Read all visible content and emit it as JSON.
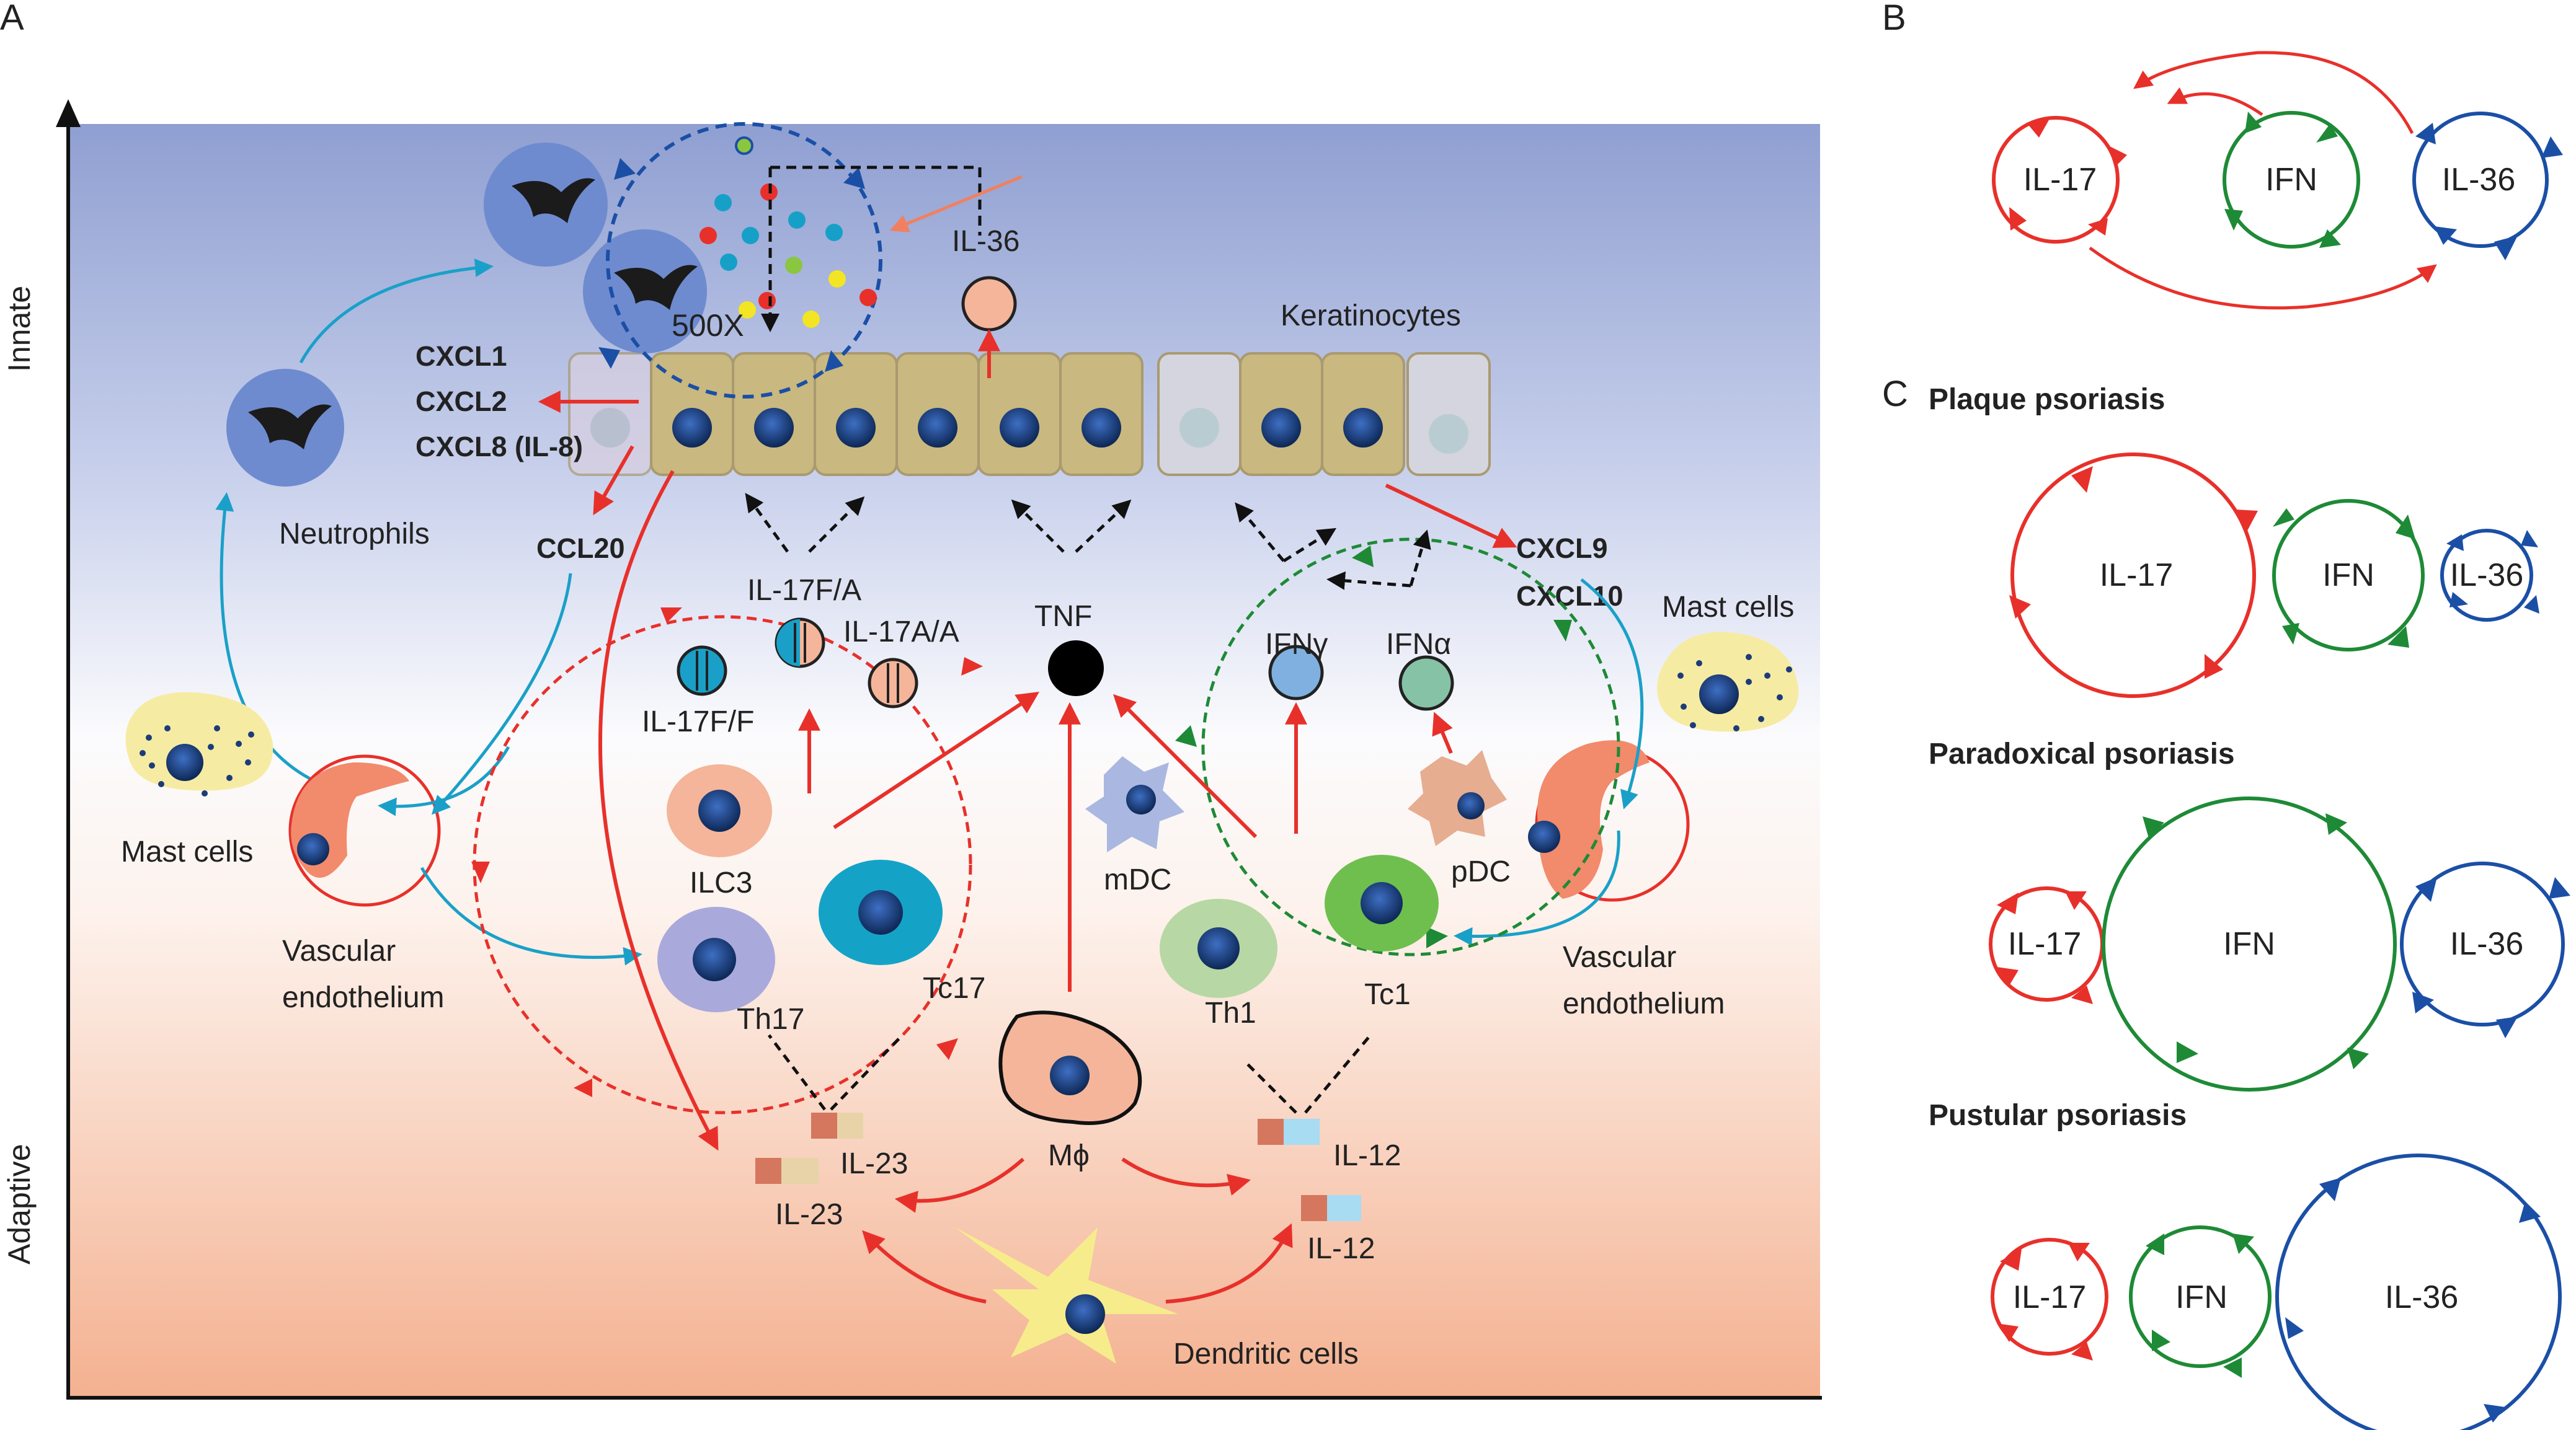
{
  "panels": {
    "a": "A",
    "b": "B",
    "c": "C"
  },
  "axis": {
    "innate": "Innate",
    "adaptive": "Adaptive"
  },
  "panel_a": {
    "keratinocytes": "Keratinocytes",
    "magnification": "500X",
    "il36": "IL-36",
    "cxcl1": "CXCL1",
    "cxcl2": "CXCL2",
    "cxcl8": "CXCL8 (IL-8)",
    "ccl20": "CCL20",
    "cxcl9": "CXCL9",
    "cxcl10": "CXCL10",
    "neutrophils": "Neutrophils",
    "mast_cells_left": "Mast cells",
    "mast_cells_right": "Mast cells",
    "vasc_left_1": "Vascular",
    "vasc_left_2": "endothelium",
    "vasc_right_1": "Vascular",
    "vasc_right_2": "endothelium",
    "il17fa": "IL-17F/A",
    "il17aa": "IL-17A/A",
    "il17ff": "IL-17F/F",
    "tnf": "TNF",
    "ifng": "IFNγ",
    "ifna": "IFNα",
    "ilc3": "ILC3",
    "th17": "Th17",
    "tc17": "Tc17",
    "mdc": "mDC",
    "pdc": "pDC",
    "th1": "Th1",
    "tc1": "Tc1",
    "mphi": "Mϕ",
    "il23a": "IL-23",
    "il23b": "IL-23",
    "il12a": "IL-12",
    "il12b": "IL-12",
    "dendritic": "Dendritic cells"
  },
  "panel_b": {
    "il17": "IL-17",
    "ifn": "IFN",
    "il36": "IL-36"
  },
  "panel_c": {
    "plaque": {
      "title": "Plaque psoriasis",
      "il17": "IL-17",
      "ifn": "IFN",
      "il36": "IL-36"
    },
    "paradoxical": {
      "title": "Paradoxical psoriasis",
      "il17": "IL-17",
      "ifn": "IFN",
      "il36": "IL-36"
    },
    "pustular": {
      "title": "Pustular psoriasis",
      "il17": "IL-17",
      "ifn": "IFN",
      "il36": "IL-36"
    }
  },
  "colors": {
    "red": "#e8302a",
    "green": "#1e8a36",
    "blue": "#1b4fa6",
    "cyan": "#1aa0c8"
  }
}
